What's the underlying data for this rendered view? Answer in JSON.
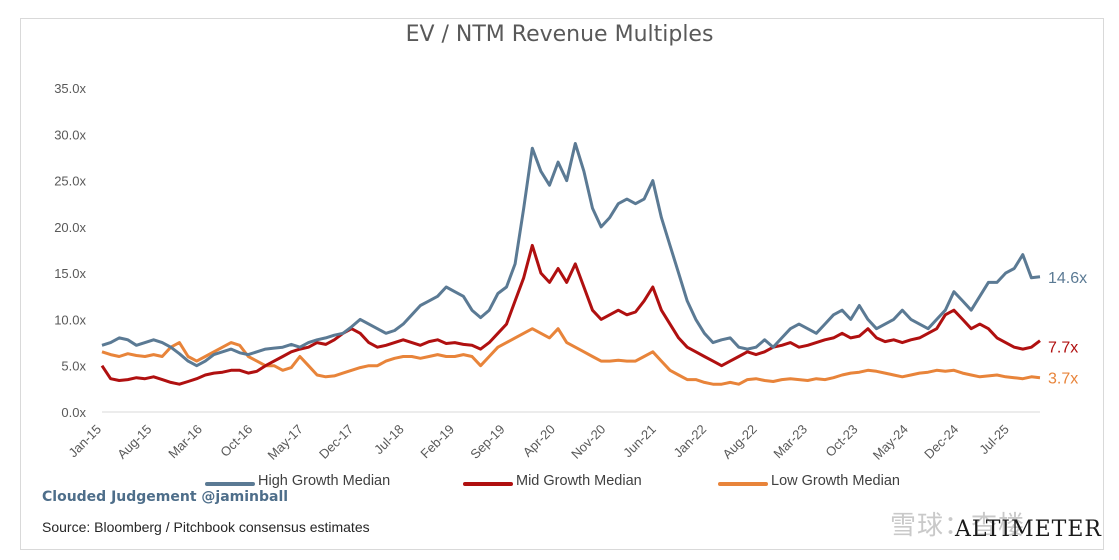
{
  "chart_data": {
    "type": "line",
    "title": "EV / NTM Revenue Multiples",
    "xlabel": "",
    "ylabel": "",
    "ylim": [
      0,
      35
    ],
    "yticks": [
      "0.0x",
      "5.0x",
      "10.0x",
      "15.0x",
      "20.0x",
      "25.0x",
      "30.0x",
      "35.0x"
    ],
    "xticks": [
      "Jan-15",
      "Aug-15",
      "Mar-16",
      "Oct-16",
      "May-17",
      "Dec-17",
      "Jul-18",
      "Feb-19",
      "Sep-19",
      "Apr-20",
      "Nov-20",
      "Jun-21",
      "Jan-22",
      "Aug-22",
      "Mar-23",
      "Oct-23",
      "May-24",
      "Dec-24",
      "Jul-25"
    ],
    "legend_position": "bottom",
    "grid": false,
    "series": [
      {
        "name": "High Growth Median",
        "color": "#5b7a94",
        "end_label": "14.6x",
        "values": [
          7.2,
          7.5,
          8.0,
          7.8,
          7.2,
          7.5,
          7.8,
          7.5,
          7.0,
          6.3,
          5.5,
          5.0,
          5.5,
          6.2,
          6.5,
          6.8,
          6.4,
          6.2,
          6.5,
          6.8,
          6.9,
          7.0,
          7.3,
          7.0,
          7.5,
          7.8,
          8.0,
          8.3,
          8.5,
          9.2,
          10.0,
          9.5,
          9.0,
          8.5,
          8.8,
          9.5,
          10.5,
          11.5,
          12.0,
          12.5,
          13.5,
          13.0,
          12.5,
          11.0,
          10.2,
          11.0,
          12.8,
          13.5,
          16.0,
          22.0,
          28.5,
          26.0,
          24.5,
          27.0,
          25.0,
          29.0,
          26.0,
          22.0,
          20.0,
          21.0,
          22.5,
          23.0,
          22.5,
          23.0,
          25.0,
          21.0,
          18.0,
          15.0,
          12.0,
          10.0,
          8.5,
          7.5,
          7.8,
          8.0,
          7.0,
          6.8,
          7.0,
          7.8,
          7.0,
          8.0,
          9.0,
          9.5,
          9.0,
          8.5,
          9.5,
          10.5,
          11.0,
          10.0,
          11.5,
          10.0,
          9.0,
          9.5,
          10.0,
          11.0,
          10.0,
          9.5,
          9.0,
          10.0,
          11.0,
          13.0,
          12.0,
          11.0,
          12.5,
          14.0,
          14.0,
          15.0,
          15.5,
          17.0,
          14.5,
          14.6
        ]
      },
      {
        "name": "Mid Growth Median",
        "color": "#b01010",
        "end_label": "7.7x",
        "values": [
          5.0,
          3.6,
          3.4,
          3.5,
          3.7,
          3.6,
          3.8,
          3.5,
          3.2,
          3.0,
          3.3,
          3.6,
          4.0,
          4.2,
          4.3,
          4.5,
          4.5,
          4.2,
          4.4,
          5.0,
          5.5,
          6.0,
          6.5,
          6.8,
          7.0,
          7.5,
          7.3,
          7.8,
          8.5,
          9.0,
          8.5,
          7.5,
          7.0,
          7.2,
          7.5,
          7.8,
          7.5,
          7.2,
          7.6,
          7.8,
          7.4,
          7.5,
          7.3,
          7.2,
          6.8,
          7.5,
          8.5,
          9.5,
          12.0,
          14.5,
          18.0,
          15.0,
          14.0,
          15.5,
          14.0,
          16.0,
          13.5,
          11.0,
          10.0,
          10.5,
          11.0,
          10.5,
          10.8,
          12.0,
          13.5,
          11.0,
          9.5,
          8.0,
          7.0,
          6.5,
          6.0,
          5.5,
          5.0,
          5.5,
          6.0,
          6.5,
          6.2,
          6.5,
          7.0,
          7.2,
          7.5,
          7.0,
          7.2,
          7.5,
          7.8,
          8.0,
          8.5,
          8.0,
          8.2,
          9.0,
          8.0,
          7.6,
          7.8,
          7.5,
          7.8,
          8.0,
          8.5,
          9.0,
          10.5,
          11.0,
          10.0,
          9.0,
          9.5,
          9.0,
          8.0,
          7.5,
          7.0,
          6.8,
          7.0,
          7.7
        ]
      },
      {
        "name": "Low Growth Median",
        "color": "#e8843a",
        "end_label": "3.7x",
        "values": [
          6.5,
          6.2,
          6.0,
          6.3,
          6.1,
          6.0,
          6.2,
          6.0,
          7.0,
          7.5,
          6.0,
          5.5,
          6.0,
          6.5,
          7.0,
          7.5,
          7.2,
          6.0,
          5.5,
          5.0,
          5.0,
          4.5,
          4.8,
          6.0,
          5.0,
          4.0,
          3.8,
          3.9,
          4.2,
          4.5,
          4.8,
          5.0,
          5.0,
          5.5,
          5.8,
          6.0,
          6.0,
          5.8,
          6.0,
          6.2,
          6.0,
          6.0,
          6.2,
          6.0,
          5.0,
          6.0,
          7.0,
          7.5,
          8.0,
          8.5,
          9.0,
          8.5,
          8.0,
          9.0,
          7.5,
          7.0,
          6.5,
          6.0,
          5.5,
          5.5,
          5.6,
          5.5,
          5.5,
          6.0,
          6.5,
          5.5,
          4.5,
          4.0,
          3.5,
          3.5,
          3.2,
          3.0,
          3.0,
          3.2,
          3.0,
          3.5,
          3.6,
          3.4,
          3.3,
          3.5,
          3.6,
          3.5,
          3.4,
          3.6,
          3.5,
          3.7,
          4.0,
          4.2,
          4.3,
          4.5,
          4.4,
          4.2,
          4.0,
          3.8,
          4.0,
          4.2,
          4.3,
          4.5,
          4.4,
          4.5,
          4.2,
          4.0,
          3.8,
          3.9,
          4.0,
          3.8,
          3.7,
          3.6,
          3.8,
          3.7
        ]
      }
    ]
  },
  "footer": {
    "handle": "Clouded Judgement @jaminball",
    "source": "Source: Bloomberg / Pitchbook consensus estimates",
    "watermark": "雪球：杳楼",
    "brand": "ALTIMETER"
  }
}
